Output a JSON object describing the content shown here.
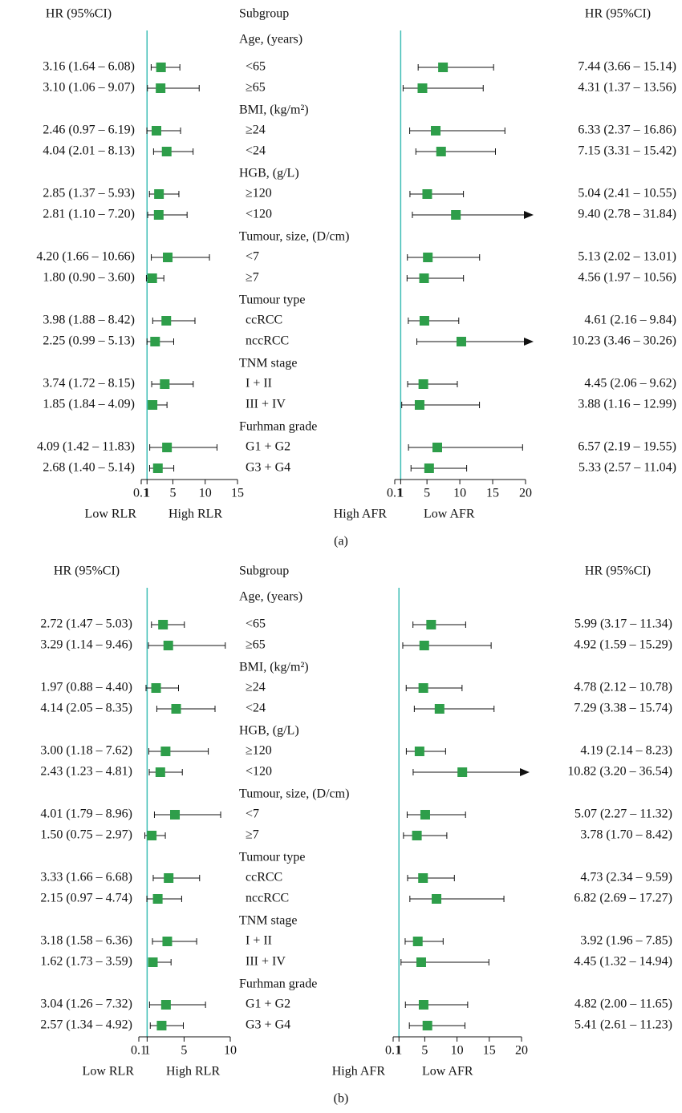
{
  "chart_data": [
    {
      "type": "forest",
      "panel_label": "(a)",
      "columns": [
        "HR (95%CI)",
        "Subgroup",
        "HR (95%CI)"
      ],
      "groups": [
        {
          "name": "Age, (years)",
          "categories": [
            "<65",
            "≥65"
          ]
        },
        {
          "name": "BMI, (kg/m²)",
          "categories": [
            "≥24",
            "<24"
          ]
        },
        {
          "name": "HGB, (g/L)",
          "categories": [
            "≥120",
            "<120"
          ]
        },
        {
          "name": "Tumour, size, (D/cm)",
          "categories": [
            "<7",
            "≥7"
          ]
        },
        {
          "name": "Tumour type",
          "categories": [
            "ccRCC",
            "nccRCC"
          ]
        },
        {
          "name": "TNM stage",
          "categories": [
            "I + II",
            "III + IV"
          ]
        },
        {
          "name": "Furhman grade",
          "categories": [
            "G1 + G2",
            "G3 + G4"
          ]
        }
      ],
      "series": [
        {
          "values": [
            3.16,
            3.1,
            2.46,
            4.04,
            2.85,
            2.81,
            4.2,
            1.8,
            3.98,
            2.25,
            3.74,
            1.85,
            4.09,
            2.68
          ],
          "lower": [
            1.64,
            1.06,
            0.97,
            2.01,
            1.37,
            1.1,
            1.66,
            0.9,
            1.88,
            0.99,
            1.72,
            1.84,
            1.42,
            1.4
          ],
          "upper": [
            6.08,
            9.07,
            6.19,
            8.13,
            5.93,
            7.2,
            10.66,
            3.6,
            8.42,
            5.13,
            8.15,
            4.09,
            11.83,
            5.14
          ],
          "value_labels": [
            "3.16 (1.64 – 6.08)",
            "3.10 (1.06 – 9.07)",
            "2.46 (0.97 – 6.19)",
            "4.04 (2.01 – 8.13)",
            "2.85 (1.37 – 5.93)",
            "2.81 (1.10 – 7.20)",
            "4.20 (1.66 – 10.66)",
            "1.80 (0.90 – 3.60)",
            "3.98 (1.88 – 8.42)",
            "2.25 (0.99 – 5.13)",
            "3.74 (1.72 – 8.15)",
            "1.85 (1.84 – 4.09)",
            "4.09 (1.42 – 11.83)",
            "2.68 (1.40 – 5.14)"
          ],
          "color": "#2e9e4a",
          "xlim": [
            0.1,
            15
          ],
          "xticks": [
            0.1,
            1,
            5,
            10,
            15
          ],
          "ref_line": 1,
          "ref_color": "#3dbdb5",
          "xlabels": [
            "Low RLR",
            "High RLR"
          ]
        },
        {
          "values": [
            7.44,
            4.31,
            6.33,
            7.15,
            5.04,
            9.4,
            5.13,
            4.56,
            4.61,
            10.23,
            4.45,
            3.88,
            6.57,
            5.33
          ],
          "lower": [
            3.66,
            1.37,
            2.37,
            3.31,
            2.41,
            2.78,
            2.02,
            1.97,
            2.16,
            3.46,
            2.06,
            1.16,
            2.19,
            2.57
          ],
          "upper": [
            15.14,
            13.56,
            16.86,
            15.42,
            10.55,
            31.84,
            13.01,
            10.56,
            9.84,
            30.26,
            9.62,
            12.99,
            19.55,
            11.04
          ],
          "value_labels": [
            "7.44 (3.66 – 15.14)",
            "4.31 (1.37 – 13.56)",
            "6.33 (2.37 – 16.86)",
            "7.15 (3.31 – 15.42)",
            "5.04 (2.41 – 10.55)",
            "9.40 (2.78 – 31.84)",
            "5.13 (2.02 – 13.01)",
            "4.56 (1.97 – 10.56)",
            "4.61 (2.16 – 9.84)",
            "10.23 (3.46 – 30.26)",
            "4.45 (2.06 – 9.62)",
            "3.88 (1.16 – 12.99)",
            "6.57 (2.19 – 19.55)",
            "5.33 (2.57 – 11.04)"
          ],
          "color": "#2e9e4a",
          "xlim": [
            0.1,
            20
          ],
          "xticks": [
            0.1,
            1,
            5,
            10,
            15,
            20
          ],
          "ref_line": 1,
          "ref_color": "#3dbdb5",
          "xlabels": [
            "High AFR",
            "Low AFR"
          ]
        }
      ]
    },
    {
      "type": "forest",
      "panel_label": "(b)",
      "columns": [
        "HR (95%CI)",
        "Subgroup",
        "HR (95%CI)"
      ],
      "groups": [
        {
          "name": "Age, (years)",
          "categories": [
            "<65",
            "≥65"
          ]
        },
        {
          "name": "BMI, (kg/m²)",
          "categories": [
            "≥24",
            "<24"
          ]
        },
        {
          "name": "HGB, (g/L)",
          "categories": [
            "≥120",
            "<120"
          ]
        },
        {
          "name": "Tumour, size, (D/cm)",
          "categories": [
            "<7",
            "≥7"
          ]
        },
        {
          "name": "Tumour type",
          "categories": [
            "ccRCC",
            "nccRCC"
          ]
        },
        {
          "name": "TNM stage",
          "categories": [
            "I + II",
            "III + IV"
          ]
        },
        {
          "name": "Furhman grade",
          "categories": [
            "G1 + G2",
            "G3 + G4"
          ]
        }
      ],
      "series": [
        {
          "values": [
            2.72,
            3.29,
            1.97,
            4.14,
            3.0,
            2.43,
            4.01,
            1.5,
            3.33,
            2.15,
            3.18,
            1.62,
            3.04,
            2.57
          ],
          "lower": [
            1.47,
            1.14,
            0.88,
            2.05,
            1.18,
            1.23,
            1.79,
            0.75,
            1.66,
            0.97,
            1.58,
            1.73,
            1.26,
            1.34
          ],
          "upper": [
            5.03,
            9.46,
            4.4,
            8.35,
            7.62,
            4.81,
            8.96,
            2.97,
            6.68,
            4.74,
            6.36,
            3.59,
            7.32,
            4.92
          ],
          "value_labels": [
            "2.72 (1.47 – 5.03)",
            "3.29 (1.14 – 9.46)",
            "1.97 (0.88 – 4.40)",
            "4.14 (2.05 – 8.35)",
            "3.00 (1.18 – 7.62)",
            "2.43 (1.23 – 4.81)",
            "4.01 (1.79 – 8.96)",
            "1.50 (0.75 – 2.97)",
            "3.33 (1.66 – 6.68)",
            "2.15 (0.97 – 4.74)",
            "3.18 (1.58 – 6.36)",
            "1.62 (1.73 – 3.59)",
            "3.04 (1.26 – 7.32)",
            "2.57 (1.34 – 4.92)"
          ],
          "color": "#2e9e4a",
          "xlim": [
            0.1,
            10
          ],
          "xticks": [
            0.1,
            1,
            5,
            10
          ],
          "ref_line": 1,
          "ref_color": "#3dbdb5",
          "xlabels": [
            "Low RLR",
            "High RLR"
          ]
        },
        {
          "values": [
            5.99,
            4.92,
            4.78,
            7.29,
            4.19,
            10.82,
            5.07,
            3.78,
            4.73,
            6.82,
            3.92,
            4.45,
            4.82,
            5.41
          ],
          "lower": [
            3.17,
            1.59,
            2.12,
            3.38,
            2.14,
            3.2,
            2.27,
            1.7,
            2.34,
            2.69,
            1.96,
            1.32,
            2.0,
            2.61
          ],
          "upper": [
            11.34,
            15.29,
            10.78,
            15.74,
            8.23,
            36.54,
            11.32,
            8.42,
            9.59,
            17.27,
            7.85,
            14.94,
            11.65,
            11.23
          ],
          "value_labels": [
            "5.99 (3.17 – 11.34)",
            "4.92 (1.59 – 15.29)",
            "4.78 (2.12 – 10.78)",
            "7.29 (3.38 – 15.74)",
            "4.19 (2.14 – 8.23)",
            "10.82 (3.20 – 36.54)",
            "5.07 (2.27 – 11.32)",
            "3.78 (1.70 – 8.42)",
            "4.73 (2.34 – 9.59)",
            "6.82 (2.69 – 17.27)",
            "3.92 (1.96 – 7.85)",
            "4.45 (1.32 – 14.94)",
            "4.82 (2.00 – 11.65)",
            "5.41 (2.61 – 11.23)"
          ],
          "color": "#2e9e4a",
          "xlim": [
            0.1,
            20
          ],
          "xticks": [
            0.1,
            1,
            5,
            10,
            15,
            20
          ],
          "ref_line": 1,
          "ref_color": "#3dbdb5",
          "xlabels": [
            "High AFR",
            "Low AFR"
          ]
        }
      ]
    }
  ]
}
